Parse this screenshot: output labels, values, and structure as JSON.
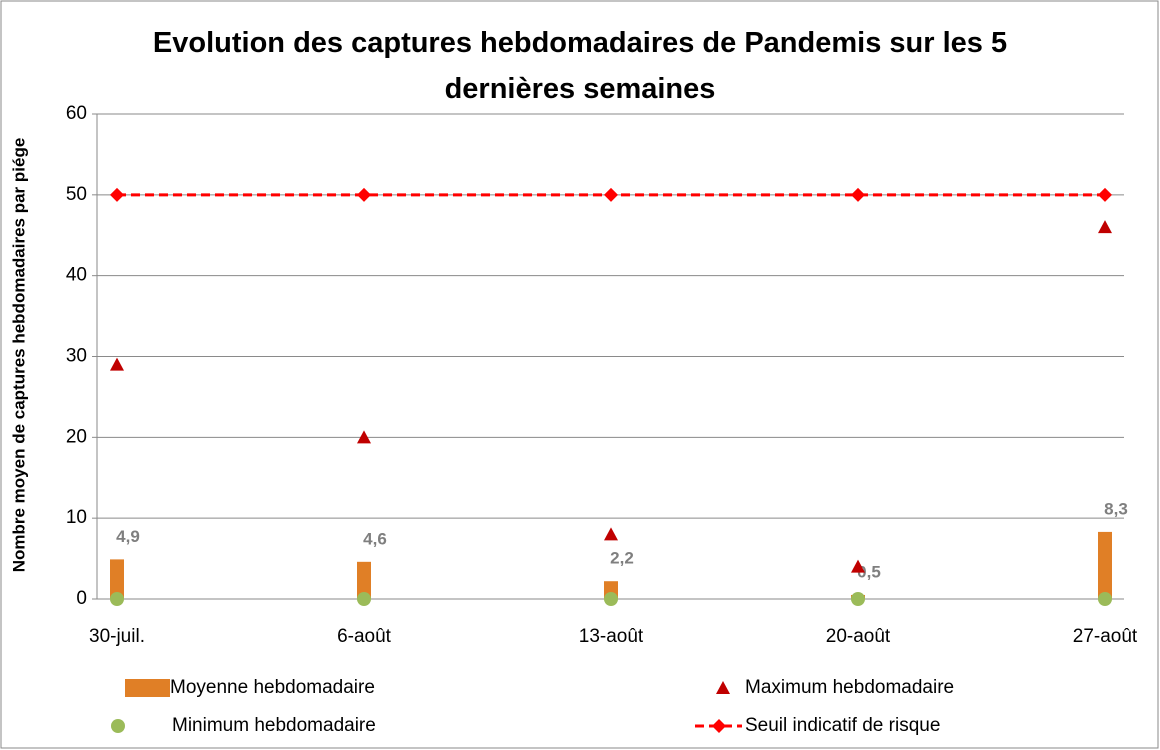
{
  "chart_data": {
    "type": "combo",
    "title": "Evolution des captures hebdomadaires de Pandemis sur les 5 dernières semaines",
    "y_label": "Nombre moyen de captures hebdomadaires par piége",
    "categories": [
      "30-juil.",
      "6-août",
      "13-août",
      "20-août",
      "27-août"
    ],
    "ylim": [
      0,
      60
    ],
    "yticks": [
      0,
      10,
      20,
      30,
      40,
      50,
      60
    ],
    "grid": true,
    "legend": "bottom",
    "series": [
      {
        "name": "Moyenne hebdomadaire",
        "kind": "bar",
        "color": "#e07f26",
        "values": [
          4.9,
          4.6,
          2.2,
          0.5,
          8.3
        ],
        "value_labels": [
          "4,9",
          "4,6",
          "2,2",
          "0,5",
          "8,3"
        ]
      },
      {
        "name": "Maximum hebdomadaire",
        "kind": "triangle",
        "color": "#c00000",
        "values": [
          29,
          20,
          8,
          4,
          46
        ]
      },
      {
        "name": "Minimum hebdomadaire",
        "kind": "circle",
        "color": "#9bbb59",
        "values": [
          0,
          0,
          0,
          0,
          0
        ]
      },
      {
        "name": "Seuil indicatif de risque",
        "kind": "dashed-line",
        "color": "#ff0000",
        "values": [
          50,
          50,
          50,
          50,
          50
        ]
      }
    ]
  }
}
